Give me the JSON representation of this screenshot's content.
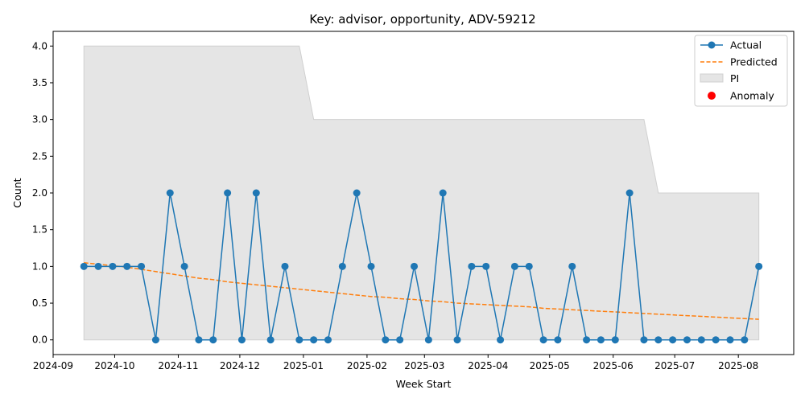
{
  "chart_data": {
    "type": "line",
    "title": "Key: advisor, opportunity, ADV-59212",
    "xlabel": "Week Start",
    "ylabel": "Count",
    "ylim": [
      -0.2,
      4.2
    ],
    "xlim": [
      "2024-09-01",
      "2025-08-28"
    ],
    "x_ticks": [
      "2024-09",
      "2024-10",
      "2024-11",
      "2024-12",
      "2025-01",
      "2025-02",
      "2025-03",
      "2025-04",
      "2025-05",
      "2025-06",
      "2025-07",
      "2025-08"
    ],
    "x_tick_dates": [
      "2024-09-01",
      "2024-10-01",
      "2024-11-01",
      "2024-12-01",
      "2025-01-01",
      "2025-02-01",
      "2025-03-01",
      "2025-04-01",
      "2025-05-01",
      "2025-06-01",
      "2025-07-01",
      "2025-08-01"
    ],
    "y_ticks": [
      "0.0",
      "0.5",
      "1.0",
      "1.5",
      "2.0",
      "2.5",
      "3.0",
      "3.5",
      "4.0"
    ],
    "y_tick_values": [
      0,
      0.5,
      1.0,
      1.5,
      2.0,
      2.5,
      3.0,
      3.5,
      4.0
    ],
    "grid": false,
    "legend_position": "top-right",
    "legend": [
      "Actual",
      "Predicted",
      "PI",
      "Anomaly"
    ],
    "colors": {
      "actual": "#1f77b4",
      "predicted": "#ff7f0e",
      "pi_fill": "#e5e5e5",
      "pi_edge": "#d0d0d0",
      "anomaly": "#ff0000"
    },
    "x": [
      "2024-09-16",
      "2024-09-23",
      "2024-09-30",
      "2024-10-07",
      "2024-10-14",
      "2024-10-21",
      "2024-10-28",
      "2024-11-04",
      "2024-11-11",
      "2024-11-18",
      "2024-11-25",
      "2024-12-02",
      "2024-12-09",
      "2024-12-16",
      "2024-12-23",
      "2024-12-30",
      "2025-01-06",
      "2025-01-13",
      "2025-01-20",
      "2025-01-27",
      "2025-02-03",
      "2025-02-10",
      "2025-02-17",
      "2025-02-24",
      "2025-03-03",
      "2025-03-10",
      "2025-03-17",
      "2025-03-24",
      "2025-03-31",
      "2025-04-07",
      "2025-04-14",
      "2025-04-21",
      "2025-04-28",
      "2025-05-05",
      "2025-05-12",
      "2025-05-19",
      "2025-05-26",
      "2025-06-02",
      "2025-06-09",
      "2025-06-16",
      "2025-06-23",
      "2025-06-30",
      "2025-07-07",
      "2025-07-14",
      "2025-07-21",
      "2025-07-28",
      "2025-08-04",
      "2025-08-11"
    ],
    "series": [
      {
        "name": "Actual",
        "values": [
          1,
          1,
          1,
          1,
          1,
          0,
          2,
          1,
          0,
          0,
          2,
          0,
          2,
          0,
          1,
          0,
          0,
          0,
          1,
          2,
          1,
          0,
          0,
          1,
          0,
          2,
          0,
          1,
          1,
          0,
          1,
          1,
          0,
          0,
          1,
          0,
          0,
          0,
          2,
          0,
          0,
          0,
          0,
          0,
          0,
          0,
          0,
          1
        ]
      },
      {
        "name": "Predicted",
        "values": [
          1.05,
          1.03,
          1.01,
          0.99,
          0.96,
          0.93,
          0.9,
          0.87,
          0.84,
          0.82,
          0.79,
          0.77,
          0.75,
          0.73,
          0.71,
          0.69,
          0.67,
          0.65,
          0.63,
          0.61,
          0.59,
          0.58,
          0.56,
          0.55,
          0.53,
          0.52,
          0.5,
          0.49,
          0.48,
          0.47,
          0.46,
          0.45,
          0.43,
          0.42,
          0.41,
          0.4,
          0.39,
          0.38,
          0.37,
          0.36,
          0.35,
          0.34,
          0.33,
          0.32,
          0.31,
          0.3,
          0.29,
          0.28
        ]
      }
    ],
    "pi_lower": [
      0,
      0,
      0,
      0,
      0,
      0,
      0,
      0,
      0,
      0,
      0,
      0,
      0,
      0,
      0,
      0,
      0,
      0,
      0,
      0,
      0,
      0,
      0,
      0,
      0,
      0,
      0,
      0,
      0,
      0,
      0,
      0,
      0,
      0,
      0,
      0,
      0,
      0,
      0,
      0,
      0,
      0,
      0,
      0,
      0,
      0,
      0,
      0
    ],
    "pi_upper": [
      4,
      4,
      4,
      4,
      4,
      4,
      4,
      4,
      4,
      4,
      4,
      4,
      4,
      4,
      4,
      4,
      3,
      3,
      3,
      3,
      3,
      3,
      3,
      3,
      3,
      3,
      3,
      3,
      3,
      3,
      3,
      3,
      3,
      3,
      3,
      3,
      3,
      3,
      3,
      3,
      2,
      2,
      2,
      2,
      2,
      2,
      2,
      2
    ],
    "anomalies": []
  }
}
